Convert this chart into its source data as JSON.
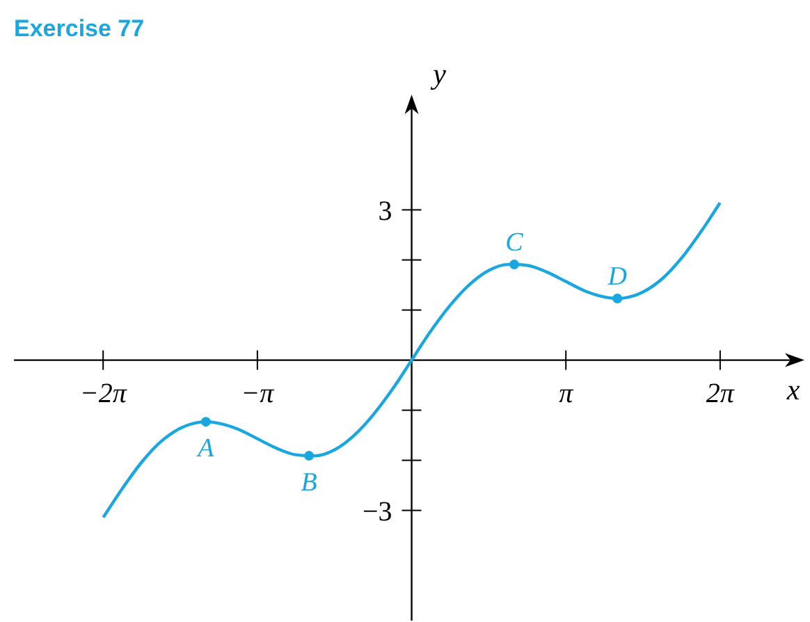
{
  "chart_data": {
    "type": "line",
    "title": "Exercise 77",
    "xlabel": "x",
    "ylabel": "y",
    "xlim": [
      -8.1,
      8.0
    ],
    "ylim": [
      -5.2,
      5.3
    ],
    "xticks": [
      {
        "value": -6.2832,
        "label": "−2π"
      },
      {
        "value": -3.1416,
        "label": "−π"
      },
      {
        "value": 3.1416,
        "label": "π"
      },
      {
        "value": 6.2832,
        "label": "2π"
      }
    ],
    "yticks": [
      {
        "value": -3,
        "label": "−3"
      },
      {
        "value": -2,
        "label": null
      },
      {
        "value": -1,
        "label": null
      },
      {
        "value": 1,
        "label": null
      },
      {
        "value": 2,
        "label": null
      },
      3
    ],
    "grid": false,
    "series": [
      {
        "color": "#1aa7e0",
        "marker": "none",
        "x": [
          -6.28,
          -5.89,
          -5.5,
          -5.11,
          -4.71,
          -4.32,
          -4.19,
          -3.93,
          -3.53,
          -3.14,
          -2.75,
          -2.36,
          -2.09,
          -1.96,
          -1.57,
          -1.18,
          -0.79,
          -0.39,
          0,
          0.39,
          0.79,
          1.18,
          1.57,
          1.96,
          2.09,
          2.36,
          2.75,
          3.14,
          3.53,
          3.93,
          4.19,
          4.32,
          4.71,
          5.11,
          5.5,
          5.89,
          6.28
        ],
        "values": [
          -3.14,
          -2.56,
          -2.04,
          -1.63,
          -1.36,
          -1.24,
          -1.23,
          -1.26,
          -1.38,
          -1.57,
          -1.76,
          -1.89,
          -1.91,
          -1.91,
          -1.79,
          -1.51,
          -1.1,
          -0.58,
          0,
          0.58,
          1.1,
          1.51,
          1.79,
          1.91,
          1.91,
          1.89,
          1.76,
          1.57,
          1.38,
          1.26,
          1.23,
          1.24,
          1.36,
          1.63,
          2.04,
          2.56,
          3.14
        ]
      },
      {
        "type": "scatter",
        "color": "#1aa7e0",
        "marker": "circle",
        "x": [
          -4.19,
          -2.09,
          2.09,
          4.19
        ],
        "values": [
          -1.23,
          -1.91,
          1.91,
          1.23
        ]
      }
    ],
    "annotations": [
      {
        "text": "A",
        "x": -4.19,
        "y": -1.23
      },
      {
        "text": "B",
        "x": -2.09,
        "y": -1.91
      },
      {
        "text": "C",
        "x": 2.09,
        "y": 1.91
      },
      {
        "text": "D",
        "x": 4.19,
        "y": 1.23
      }
    ]
  }
}
